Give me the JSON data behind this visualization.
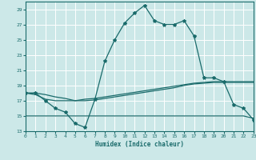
{
  "xlabel": "Humidex (Indice chaleur)",
  "ylabel": "",
  "bg_color": "#cce8e8",
  "grid_color": "#ffffff",
  "line_color": "#1a6b6b",
  "xmin": 0,
  "xmax": 23,
  "ymin": 13,
  "ymax": 30,
  "yticks": [
    13,
    15,
    17,
    19,
    21,
    23,
    25,
    27,
    29
  ],
  "xticks": [
    0,
    1,
    2,
    3,
    4,
    5,
    6,
    7,
    8,
    9,
    10,
    11,
    12,
    13,
    14,
    15,
    16,
    17,
    18,
    19,
    20,
    21,
    22,
    23
  ],
  "curve1_x": [
    0,
    1,
    2,
    3,
    4,
    5,
    6,
    7,
    8,
    9,
    10,
    11,
    12,
    13,
    14,
    15,
    16,
    17,
    18,
    19,
    20,
    21,
    22,
    23
  ],
  "curve1_y": [
    18.0,
    18.0,
    17.0,
    16.0,
    15.5,
    14.0,
    13.5,
    17.2,
    22.2,
    25.0,
    27.2,
    28.5,
    29.5,
    27.5,
    27.0,
    27.0,
    27.5,
    25.5,
    20.0,
    20.0,
    19.5,
    16.5,
    16.0,
    14.5
  ],
  "curve2_x": [
    0,
    1,
    2,
    3,
    4,
    5,
    6,
    7,
    8,
    9,
    10,
    11,
    12,
    13,
    14,
    15,
    16,
    17,
    18,
    19,
    20,
    21,
    22,
    23
  ],
  "curve2_y": [
    18.0,
    17.8,
    17.2,
    17.0,
    17.0,
    17.0,
    17.2,
    17.3,
    17.5,
    17.7,
    17.9,
    18.1,
    18.3,
    18.5,
    18.7,
    18.9,
    19.1,
    19.3,
    19.4,
    19.5,
    19.5,
    19.5,
    19.5,
    19.5
  ],
  "curve3_x": [
    0,
    1,
    2,
    3,
    4,
    5,
    6,
    7,
    8,
    9,
    10,
    11,
    12,
    13,
    14,
    15,
    16,
    17,
    18,
    19,
    20,
    21,
    22,
    23
  ],
  "curve3_y": [
    18.0,
    18.0,
    17.8,
    17.5,
    17.3,
    17.0,
    17.0,
    17.1,
    17.3,
    17.5,
    17.7,
    17.9,
    18.1,
    18.3,
    18.5,
    18.7,
    19.0,
    19.2,
    19.3,
    19.4,
    19.4,
    19.4,
    19.4,
    19.4
  ],
  "curve4_x": [
    0,
    1,
    2,
    3,
    4,
    5,
    6,
    7,
    8,
    9,
    10,
    11,
    12,
    13,
    14,
    15,
    16,
    17,
    18,
    19,
    20,
    21,
    22,
    23
  ],
  "curve4_y": [
    15.0,
    15.0,
    15.0,
    15.0,
    15.0,
    15.0,
    15.0,
    15.0,
    15.0,
    15.0,
    15.0,
    15.0,
    15.0,
    15.0,
    15.0,
    15.0,
    15.0,
    15.0,
    15.0,
    15.0,
    15.0,
    15.0,
    15.0,
    14.7
  ]
}
